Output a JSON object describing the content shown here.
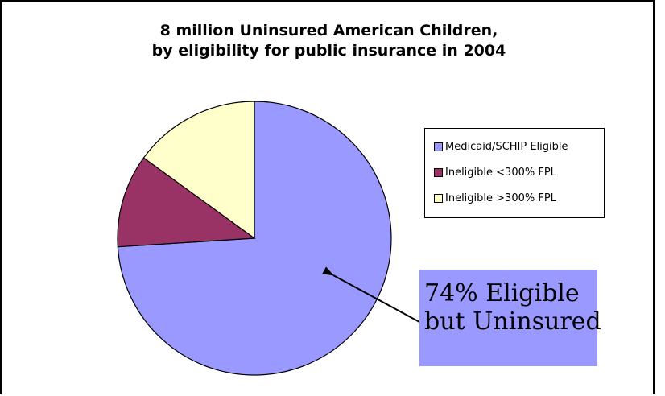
{
  "chart_data": {
    "type": "pie",
    "title": [
      "8 million Uninsured American Children,",
      "by eligibility for public insurance in 2004"
    ],
    "slices": [
      {
        "label": "Medicaid/SCHIP Eligible",
        "value": 74,
        "color": "#9999ff"
      },
      {
        "label": "Ineligible <300% FPL",
        "value": 11,
        "color": "#993366"
      },
      {
        "label": "Ineligible >300% FPL",
        "value": 15,
        "color": "#ffffcc"
      }
    ],
    "legend_position": "right",
    "annotation": {
      "lines": [
        "74% Eligible",
        "but Uninsured"
      ],
      "points_to": "Medicaid/SCHIP Eligible"
    }
  }
}
